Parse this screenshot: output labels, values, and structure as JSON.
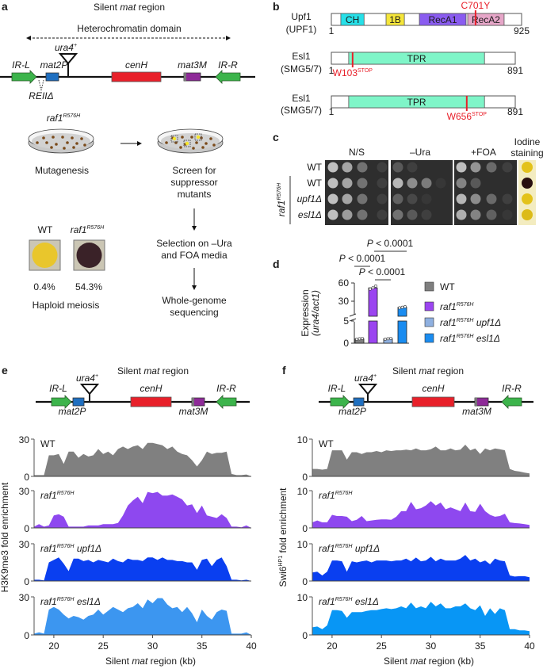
{
  "panel_labels": {
    "a": "a",
    "b": "b",
    "c": "c",
    "d": "d",
    "e": "e",
    "f": "f"
  },
  "region_title": {
    "pre": "Silent ",
    "it": "mat",
    "post": " region"
  },
  "locus": {
    "ir_l": "IR-L",
    "mat2p": "mat2P",
    "ura4": "ura4",
    "ura4_sup": "+",
    "cenh": "cenH",
    "mat3m": "mat3M",
    "ir_r": "IR-R",
    "reii": "REIIΔ"
  },
  "genotype": {
    "gene": "raf1",
    "allele": "R576H"
  },
  "colors": {
    "ir": "#3cb44b",
    "mat2p": "#1f6fc0",
    "cenh": "#e8202a",
    "mat3m": "#8e2a98",
    "plate": "#2e2e2e"
  },
  "a": {
    "domain_label": "Heterochromatin domain",
    "mutagenesis": "Mutagenesis",
    "screen": [
      "Screen for",
      "suppressor",
      "mutants"
    ],
    "selection": [
      "Selection on –Ura",
      "and FOA media"
    ],
    "sequencing": [
      "Whole-genome",
      "sequencing"
    ],
    "meiosis": {
      "wt": "WT",
      "wt_pct": "0.4%",
      "raf1_pct": "54.3%",
      "caption": "Haploid meiosis",
      "wt_color": "#e9c62c",
      "raf1_color": "#3a2228"
    }
  },
  "b": {
    "proteins": [
      {
        "name": "Upf1",
        "ortholog": "(UPF1)",
        "start": "1",
        "end": "925",
        "length": 925,
        "domains": [
          {
            "label": "CH",
            "from": 46,
            "to": 159,
            "color": "#26e0e8"
          },
          {
            "label": "1B",
            "from": 266,
            "to": 355,
            "color": "#f5e63a"
          },
          {
            "label": "RecA1",
            "from": 428,
            "to": 655,
            "color": "#8a5cf0"
          },
          {
            "label": "RecA2",
            "from": 663,
            "to": 840,
            "color": "#e6a6c8"
          }
        ],
        "mutation": {
          "pos": 701,
          "label": "C701Y",
          "sup": "",
          "above": true
        }
      },
      {
        "name": "Esl1",
        "ortholog": "(SMG5/7)",
        "start": "1",
        "end": "891",
        "length": 891,
        "domains": [
          {
            "label": "TPR",
            "from": 84,
            "to": 742,
            "color": "#7ff5c8"
          }
        ],
        "mutation": {
          "pos": 103,
          "label": "W103",
          "sup": "STOP",
          "above": false
        }
      },
      {
        "name": "Esl1",
        "ortholog": "(SMG5/7)",
        "start": "1",
        "end": "891",
        "length": 891,
        "domains": [
          {
            "label": "TPR",
            "from": 84,
            "to": 742,
            "color": "#7ff5c8"
          }
        ],
        "mutation": {
          "pos": 656,
          "label": "W656",
          "sup": "STOP",
          "above": false
        }
      }
    ]
  },
  "c": {
    "columns": [
      "N/S",
      "–Ura",
      "+FOA"
    ],
    "iodine": [
      "Iodine",
      "staining"
    ],
    "rows": [
      {
        "label": "WT",
        "it": false,
        "growth": [
          [
            0.85,
            0.7,
            0.4,
            0.1
          ],
          [
            0.25,
            0.1,
            0,
            0
          ],
          [
            0.85,
            0.6,
            0.35,
            0.1
          ]
        ],
        "iodine": "#e3c21a"
      },
      {
        "label": "WT",
        "it": false,
        "growth": [
          [
            0.85,
            0.7,
            0.4,
            0.1
          ],
          [
            0.8,
            0.55,
            0.45,
            0.05
          ],
          [
            0.5,
            0.25,
            0,
            0
          ]
        ],
        "iodine": "#2a1010"
      },
      {
        "label": "upf1Δ",
        "it": true,
        "growth": [
          [
            0.85,
            0.7,
            0.4,
            0.1
          ],
          [
            0.3,
            0.15,
            0.05,
            0
          ],
          [
            0.8,
            0.55,
            0.35,
            0.1
          ]
        ],
        "iodine": "#e3c21a"
      },
      {
        "label": "esl1Δ",
        "it": true,
        "growth": [
          [
            0.85,
            0.65,
            0.4,
            0.1
          ],
          [
            0.4,
            0.25,
            0.1,
            0
          ],
          [
            0.75,
            0.5,
            0.3,
            0.05
          ]
        ],
        "iodine": "#dcbb18"
      }
    ]
  },
  "chart_data": [
    {
      "panel": "d",
      "type": "bar",
      "categories": [
        "WT",
        "raf1 R576H",
        "raf1 R576H upf1Δ",
        "raf1 R576H esl1Δ"
      ],
      "values": [
        1,
        52,
        1,
        20
      ],
      "points": [
        [
          0.9,
          1,
          1.1
        ],
        [
          50,
          52,
          55
        ],
        [
          0.9,
          1,
          1.1
        ],
        [
          19,
          20,
          21
        ]
      ],
      "colors": [
        "#7f7f7f",
        "#9b45f0",
        "#8fb0e0",
        "#1a8cf0"
      ],
      "ylabel": {
        "main": "Expression",
        "sub": "(ura4/act1)"
      },
      "yticks": [
        "0",
        "5",
        "30",
        "60"
      ],
      "ylim": [
        0,
        60
      ],
      "axis_break": [
        5,
        5
      ],
      "comparisons": [
        {
          "p": "P",
          "text": " < 0.0001"
        },
        {
          "p": "P",
          "text": " < 0.0001"
        },
        {
          "p": "P",
          "text": " < 0.0001"
        }
      ],
      "legend": [
        {
          "label": "WT",
          "gene": "",
          "allele": "",
          "suffix": ""
        },
        {
          "label": "",
          "gene": "raf1",
          "allele": "R576H",
          "suffix": ""
        },
        {
          "label": "",
          "gene": "raf1",
          "allele": "R576H",
          "suffix": " upf1Δ"
        },
        {
          "label": "",
          "gene": "raf1",
          "allele": "R576H",
          "suffix": " esl1Δ"
        }
      ],
      "legend_position": "right"
    },
    {
      "panel": "e",
      "type": "area",
      "xlabel": {
        "pre": "Silent ",
        "it": "mat",
        "post": " region (kb)"
      },
      "ylabel": "H3K9me3 fold enrichment",
      "xlim": [
        18,
        40
      ],
      "xticks": [
        "20",
        "25",
        "30",
        "35",
        "40"
      ],
      "ylim": [
        0,
        30
      ],
      "yticks": [
        "0",
        "30"
      ],
      "x_start": 18,
      "x_step": 0.5,
      "series": [
        {
          "label": "WT",
          "suffix": "",
          "mutant": false,
          "color": "#808080",
          "values": [
            1,
            1,
            1,
            17,
            17,
            18,
            10,
            20,
            20,
            15,
            18,
            16,
            17,
            22,
            18,
            20,
            17,
            22,
            24,
            22,
            24,
            25,
            22,
            27,
            27,
            26,
            25,
            22,
            24,
            20,
            18,
            17,
            13,
            8,
            13,
            20,
            18,
            19,
            19,
            20,
            2,
            1,
            1,
            1.5,
            0
          ]
        },
        {
          "label": "",
          "suffix": "",
          "mutant": true,
          "color": "#8e48ef",
          "values": [
            1,
            3,
            1,
            2,
            10,
            11,
            9,
            1,
            1,
            1,
            1,
            2,
            2,
            2,
            3,
            3,
            3,
            4,
            10,
            18,
            22,
            25,
            20,
            29,
            28,
            29,
            26,
            26,
            27,
            25,
            23,
            18,
            19,
            12,
            18,
            10,
            9,
            8,
            11,
            8,
            1,
            1,
            0.5,
            2,
            0
          ]
        },
        {
          "label": "",
          "suffix": " upf1Δ",
          "mutant": true,
          "color": "#0a3ff0",
          "values": [
            1,
            1,
            0.5,
            15,
            17,
            19,
            14,
            8,
            18,
            18,
            16,
            17,
            15,
            17,
            16,
            15,
            18,
            16,
            15,
            18,
            17,
            17,
            16,
            19,
            19,
            17,
            19,
            17,
            17,
            16,
            16,
            15,
            15,
            9,
            17,
            18,
            12,
            17,
            19,
            12,
            1,
            1,
            0.5,
            1,
            0
          ]
        },
        {
          "label": "",
          "suffix": " esl1Δ",
          "mutant": true,
          "color": "#3c96f0",
          "values": [
            1,
            2,
            1,
            20,
            22,
            20,
            16,
            13,
            15,
            14,
            12,
            15,
            16,
            20,
            16,
            19,
            22,
            20,
            18,
            21,
            22,
            25,
            21,
            28,
            25,
            29,
            29,
            24,
            21,
            22,
            18,
            22,
            17,
            10,
            20,
            15,
            12,
            18,
            20,
            19,
            1,
            1,
            1,
            2,
            0
          ]
        }
      ]
    },
    {
      "panel": "f",
      "type": "area",
      "xlabel": {
        "pre": "Silent ",
        "it": "mat",
        "post": " region (kb)"
      },
      "ylabel": {
        "pre": "Swi6",
        "sup": "HP1",
        "post": " fold enrichment"
      },
      "xlim": [
        18,
        40
      ],
      "xticks": [
        "20",
        "25",
        "30",
        "35",
        "40"
      ],
      "ylim": [
        0,
        10
      ],
      "yticks": [
        "0",
        "10"
      ],
      "x_start": 18,
      "x_step": 0.5,
      "series": [
        {
          "label": "WT",
          "suffix": "",
          "mutant": false,
          "color": "#808080",
          "values": [
            2,
            2,
            1.8,
            2,
            7,
            7,
            7,
            4.5,
            6.5,
            6.5,
            6,
            6.5,
            6.5,
            6.8,
            6.5,
            7,
            6.8,
            7,
            7,
            7.2,
            7,
            7.5,
            7,
            7,
            7.3,
            8,
            7,
            7,
            7.5,
            7,
            7.2,
            8.5,
            7,
            7.5,
            6,
            7.5,
            7,
            7.5,
            7.3,
            7,
            2,
            1.5,
            1.3,
            1,
            0.8
          ]
        },
        {
          "label": "",
          "suffix": "",
          "mutant": true,
          "color": "#8e48ef",
          "values": [
            1.5,
            2,
            1.5,
            1.5,
            3.5,
            3.2,
            3.2,
            3,
            1.8,
            2.2,
            3.2,
            1.8,
            2,
            2.2,
            2.3,
            2.3,
            2.2,
            3,
            4.5,
            4.5,
            7,
            5,
            5.3,
            6,
            7.2,
            6,
            6.8,
            5,
            5.5,
            5,
            4.5,
            6.8,
            4.5,
            4.3,
            6.5,
            4.5,
            3.5,
            3,
            3.2,
            3.8,
            1.5,
            1.3,
            1.2,
            1,
            0.8
          ]
        },
        {
          "label": "",
          "suffix": " upf1Δ",
          "mutant": true,
          "color": "#0a3ff0",
          "values": [
            2.3,
            2.5,
            1.5,
            2.5,
            5.5,
            5.5,
            5.3,
            2.5,
            5.3,
            5,
            5.3,
            5.5,
            5,
            5.5,
            5.5,
            5.5,
            5.3,
            5.5,
            5.5,
            6,
            5.3,
            6.3,
            5.3,
            5.5,
            6.5,
            5.3,
            6,
            5.5,
            5.5,
            5.5,
            6,
            7,
            5.5,
            6,
            5,
            5.5,
            4.5,
            6,
            5.5,
            5.3,
            1.5,
            1.2,
            1.3,
            1.3,
            1
          ]
        },
        {
          "label": "",
          "suffix": " esl1Δ",
          "mutant": true,
          "color": "#0896f5",
          "values": [
            2,
            2.2,
            1.5,
            2.5,
            6.5,
            6.5,
            6.3,
            4.5,
            6,
            6,
            6,
            6.3,
            6.5,
            6.5,
            6.8,
            7,
            6.8,
            7,
            7.5,
            7,
            8.5,
            7,
            7.5,
            7,
            8.7,
            7.5,
            8.3,
            7,
            7,
            7.5,
            7.5,
            8.3,
            7,
            6.5,
            7.8,
            5,
            7,
            5.5,
            7,
            6.5,
            1.5,
            1.5,
            1.2,
            1.2,
            1
          ]
        }
      ]
    }
  ]
}
